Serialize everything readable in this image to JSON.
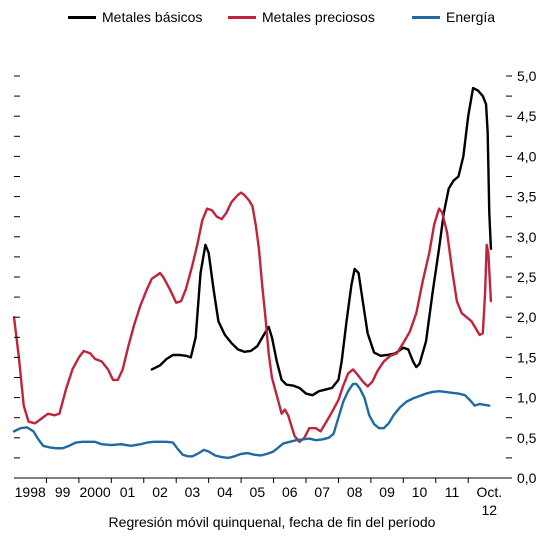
{
  "chart_data": {
    "type": "line",
    "title": "",
    "xlabel": "Regresión móvil quinquenal, fecha de fin del período",
    "ylabel": "",
    "x_range": [
      1997.5,
      2012.85
    ],
    "y_range": [
      0,
      5
    ],
    "y_axis_side": "right",
    "y_ticks": [
      "0,0",
      "0,5",
      "1,0",
      "1,5",
      "2,0",
      "2,5",
      "3,0",
      "3,5",
      "4,0",
      "4,5",
      "5,0"
    ],
    "x_ticks": [
      {
        "x": 1998,
        "label": "1998"
      },
      {
        "x": 1999,
        "label": "99"
      },
      {
        "x": 2000,
        "label": "2000"
      },
      {
        "x": 2001,
        "label": "01"
      },
      {
        "x": 2002,
        "label": "02"
      },
      {
        "x": 2003,
        "label": "03"
      },
      {
        "x": 2004,
        "label": "04"
      },
      {
        "x": 2005,
        "label": "05"
      },
      {
        "x": 2006,
        "label": "06"
      },
      {
        "x": 2007,
        "label": "07"
      },
      {
        "x": 2008,
        "label": "08"
      },
      {
        "x": 2009,
        "label": "09"
      },
      {
        "x": 2010,
        "label": "10"
      },
      {
        "x": 2011,
        "label": "11"
      },
      {
        "x": 2012.15,
        "label": "Oct.",
        "label2": "12"
      }
    ],
    "legend_position": "top",
    "grid": false,
    "series": [
      {
        "name": "Metales básicos",
        "color": "#000000",
        "points": [
          [
            2001.75,
            1.35
          ],
          [
            2002,
            1.4
          ],
          [
            2002.2,
            1.48
          ],
          [
            2002.4,
            1.53
          ],
          [
            2002.6,
            1.53
          ],
          [
            2002.8,
            1.52
          ],
          [
            2002.95,
            1.5
          ],
          [
            2003.1,
            1.75
          ],
          [
            2003.25,
            2.55
          ],
          [
            2003.4,
            2.9
          ],
          [
            2003.5,
            2.8
          ],
          [
            2003.65,
            2.35
          ],
          [
            2003.8,
            1.95
          ],
          [
            2004,
            1.78
          ],
          [
            2004.2,
            1.68
          ],
          [
            2004.4,
            1.6
          ],
          [
            2004.6,
            1.57
          ],
          [
            2004.8,
            1.58
          ],
          [
            2005,
            1.64
          ],
          [
            2005.2,
            1.78
          ],
          [
            2005.35,
            1.88
          ],
          [
            2005.45,
            1.75
          ],
          [
            2005.6,
            1.45
          ],
          [
            2005.75,
            1.22
          ],
          [
            2005.9,
            1.16
          ],
          [
            2006.1,
            1.15
          ],
          [
            2006.3,
            1.12
          ],
          [
            2006.5,
            1.05
          ],
          [
            2006.7,
            1.03
          ],
          [
            2006.9,
            1.08
          ],
          [
            2007.1,
            1.1
          ],
          [
            2007.3,
            1.12
          ],
          [
            2007.5,
            1.22
          ],
          [
            2007.6,
            1.45
          ],
          [
            2007.75,
            1.95
          ],
          [
            2007.9,
            2.4
          ],
          [
            2008,
            2.6
          ],
          [
            2008.12,
            2.55
          ],
          [
            2008.25,
            2.2
          ],
          [
            2008.4,
            1.8
          ],
          [
            2008.6,
            1.56
          ],
          [
            2008.8,
            1.52
          ],
          [
            2009,
            1.53
          ],
          [
            2009.25,
            1.55
          ],
          [
            2009.5,
            1.62
          ],
          [
            2009.65,
            1.6
          ],
          [
            2009.8,
            1.45
          ],
          [
            2009.9,
            1.38
          ],
          [
            2010,
            1.42
          ],
          [
            2010.2,
            1.7
          ],
          [
            2010.4,
            2.3
          ],
          [
            2010.6,
            2.85
          ],
          [
            2010.75,
            3.3
          ],
          [
            2010.9,
            3.6
          ],
          [
            2011.05,
            3.7
          ],
          [
            2011.2,
            3.75
          ],
          [
            2011.35,
            4.0
          ],
          [
            2011.5,
            4.5
          ],
          [
            2011.65,
            4.85
          ],
          [
            2011.8,
            4.82
          ],
          [
            2011.95,
            4.75
          ],
          [
            2012.05,
            4.65
          ],
          [
            2012.1,
            4.3
          ],
          [
            2012.15,
            3.3
          ],
          [
            2012.2,
            2.85
          ]
        ]
      },
      {
        "name": "Metales preciosos",
        "color": "#c0243c",
        "points": [
          [
            1997.5,
            2.0
          ],
          [
            1997.65,
            1.5
          ],
          [
            1997.8,
            0.9
          ],
          [
            1997.95,
            0.7
          ],
          [
            1998.15,
            0.68
          ],
          [
            1998.35,
            0.74
          ],
          [
            1998.55,
            0.8
          ],
          [
            1998.75,
            0.78
          ],
          [
            1998.9,
            0.8
          ],
          [
            1999.1,
            1.1
          ],
          [
            1999.3,
            1.35
          ],
          [
            1999.5,
            1.5
          ],
          [
            1999.65,
            1.58
          ],
          [
            1999.85,
            1.55
          ],
          [
            2000,
            1.48
          ],
          [
            2000.2,
            1.45
          ],
          [
            2000.4,
            1.35
          ],
          [
            2000.55,
            1.22
          ],
          [
            2000.7,
            1.22
          ],
          [
            2000.85,
            1.35
          ],
          [
            2001,
            1.6
          ],
          [
            2001.2,
            1.9
          ],
          [
            2001.4,
            2.15
          ],
          [
            2001.6,
            2.35
          ],
          [
            2001.75,
            2.48
          ],
          [
            2001.9,
            2.52
          ],
          [
            2002,
            2.55
          ],
          [
            2002.1,
            2.5
          ],
          [
            2002.3,
            2.35
          ],
          [
            2002.5,
            2.18
          ],
          [
            2002.65,
            2.2
          ],
          [
            2002.8,
            2.35
          ],
          [
            2003,
            2.65
          ],
          [
            2003.15,
            2.9
          ],
          [
            2003.3,
            3.2
          ],
          [
            2003.45,
            3.35
          ],
          [
            2003.6,
            3.33
          ],
          [
            2003.75,
            3.25
          ],
          [
            2003.9,
            3.22
          ],
          [
            2004.05,
            3.3
          ],
          [
            2004.2,
            3.43
          ],
          [
            2004.4,
            3.52
          ],
          [
            2004.5,
            3.55
          ],
          [
            2004.6,
            3.52
          ],
          [
            2004.75,
            3.45
          ],
          [
            2004.85,
            3.38
          ],
          [
            2004.95,
            3.15
          ],
          [
            2005.05,
            2.85
          ],
          [
            2005.15,
            2.4
          ],
          [
            2005.25,
            2.0
          ],
          [
            2005.35,
            1.55
          ],
          [
            2005.45,
            1.25
          ],
          [
            2005.55,
            1.1
          ],
          [
            2005.65,
            0.95
          ],
          [
            2005.75,
            0.8
          ],
          [
            2005.85,
            0.85
          ],
          [
            2005.95,
            0.78
          ],
          [
            2006.05,
            0.65
          ],
          [
            2006.15,
            0.52
          ],
          [
            2006.3,
            0.45
          ],
          [
            2006.45,
            0.5
          ],
          [
            2006.6,
            0.62
          ],
          [
            2006.8,
            0.62
          ],
          [
            2006.95,
            0.58
          ],
          [
            2007.1,
            0.68
          ],
          [
            2007.3,
            0.82
          ],
          [
            2007.5,
            0.97
          ],
          [
            2007.65,
            1.15
          ],
          [
            2007.8,
            1.3
          ],
          [
            2007.95,
            1.35
          ],
          [
            2008.1,
            1.28
          ],
          [
            2008.25,
            1.2
          ],
          [
            2008.4,
            1.14
          ],
          [
            2008.55,
            1.2
          ],
          [
            2008.7,
            1.33
          ],
          [
            2008.9,
            1.45
          ],
          [
            2009.1,
            1.52
          ],
          [
            2009.3,
            1.55
          ],
          [
            2009.5,
            1.68
          ],
          [
            2009.7,
            1.82
          ],
          [
            2009.9,
            2.05
          ],
          [
            2010.1,
            2.45
          ],
          [
            2010.3,
            2.8
          ],
          [
            2010.45,
            3.15
          ],
          [
            2010.6,
            3.35
          ],
          [
            2010.7,
            3.3
          ],
          [
            2010.85,
            3.05
          ],
          [
            2011,
            2.6
          ],
          [
            2011.15,
            2.2
          ],
          [
            2011.3,
            2.05
          ],
          [
            2011.45,
            2.0
          ],
          [
            2011.6,
            1.95
          ],
          [
            2011.75,
            1.85
          ],
          [
            2011.85,
            1.78
          ],
          [
            2011.95,
            1.8
          ],
          [
            2012.02,
            2.3
          ],
          [
            2012.07,
            2.9
          ],
          [
            2012.12,
            2.8
          ],
          [
            2012.2,
            2.2
          ]
        ]
      },
      {
        "name": "Energía",
        "color": "#1f6aa5",
        "points": [
          [
            1997.5,
            0.58
          ],
          [
            1997.7,
            0.62
          ],
          [
            1997.9,
            0.63
          ],
          [
            1998.1,
            0.58
          ],
          [
            1998.25,
            0.48
          ],
          [
            1998.4,
            0.4
          ],
          [
            1998.6,
            0.38
          ],
          [
            1998.8,
            0.37
          ],
          [
            1999,
            0.37
          ],
          [
            1999.2,
            0.4
          ],
          [
            1999.4,
            0.44
          ],
          [
            1999.6,
            0.45
          ],
          [
            1999.8,
            0.45
          ],
          [
            2000,
            0.45
          ],
          [
            2000.2,
            0.42
          ],
          [
            2000.5,
            0.41
          ],
          [
            2000.8,
            0.42
          ],
          [
            2001.1,
            0.4
          ],
          [
            2001.4,
            0.42
          ],
          [
            2001.6,
            0.44
          ],
          [
            2001.8,
            0.45
          ],
          [
            2002,
            0.45
          ],
          [
            2002.2,
            0.45
          ],
          [
            2002.4,
            0.44
          ],
          [
            2002.55,
            0.36
          ],
          [
            2002.7,
            0.29
          ],
          [
            2002.85,
            0.27
          ],
          [
            2003,
            0.27
          ],
          [
            2003.2,
            0.31
          ],
          [
            2003.35,
            0.35
          ],
          [
            2003.5,
            0.33
          ],
          [
            2003.7,
            0.28
          ],
          [
            2003.9,
            0.26
          ],
          [
            2004.1,
            0.25
          ],
          [
            2004.3,
            0.27
          ],
          [
            2004.5,
            0.3
          ],
          [
            2004.7,
            0.31
          ],
          [
            2004.9,
            0.29
          ],
          [
            2005.1,
            0.28
          ],
          [
            2005.3,
            0.3
          ],
          [
            2005.5,
            0.33
          ],
          [
            2005.65,
            0.38
          ],
          [
            2005.8,
            0.43
          ],
          [
            2006,
            0.45
          ],
          [
            2006.2,
            0.47
          ],
          [
            2006.4,
            0.48
          ],
          [
            2006.6,
            0.49
          ],
          [
            2006.8,
            0.47
          ],
          [
            2007,
            0.48
          ],
          [
            2007.2,
            0.5
          ],
          [
            2007.35,
            0.55
          ],
          [
            2007.5,
            0.75
          ],
          [
            2007.65,
            0.95
          ],
          [
            2007.8,
            1.08
          ],
          [
            2007.95,
            1.17
          ],
          [
            2008.05,
            1.17
          ],
          [
            2008.15,
            1.12
          ],
          [
            2008.3,
            1.0
          ],
          [
            2008.45,
            0.78
          ],
          [
            2008.6,
            0.67
          ],
          [
            2008.75,
            0.62
          ],
          [
            2008.9,
            0.62
          ],
          [
            2009.05,
            0.68
          ],
          [
            2009.2,
            0.78
          ],
          [
            2009.4,
            0.88
          ],
          [
            2009.6,
            0.95
          ],
          [
            2009.8,
            0.99
          ],
          [
            2010,
            1.02
          ],
          [
            2010.2,
            1.05
          ],
          [
            2010.4,
            1.07
          ],
          [
            2010.6,
            1.08
          ],
          [
            2010.8,
            1.07
          ],
          [
            2011,
            1.06
          ],
          [
            2011.2,
            1.05
          ],
          [
            2011.4,
            1.03
          ],
          [
            2011.55,
            0.97
          ],
          [
            2011.7,
            0.9
          ],
          [
            2011.85,
            0.92
          ],
          [
            2012,
            0.91
          ],
          [
            2012.15,
            0.9
          ]
        ]
      }
    ]
  }
}
